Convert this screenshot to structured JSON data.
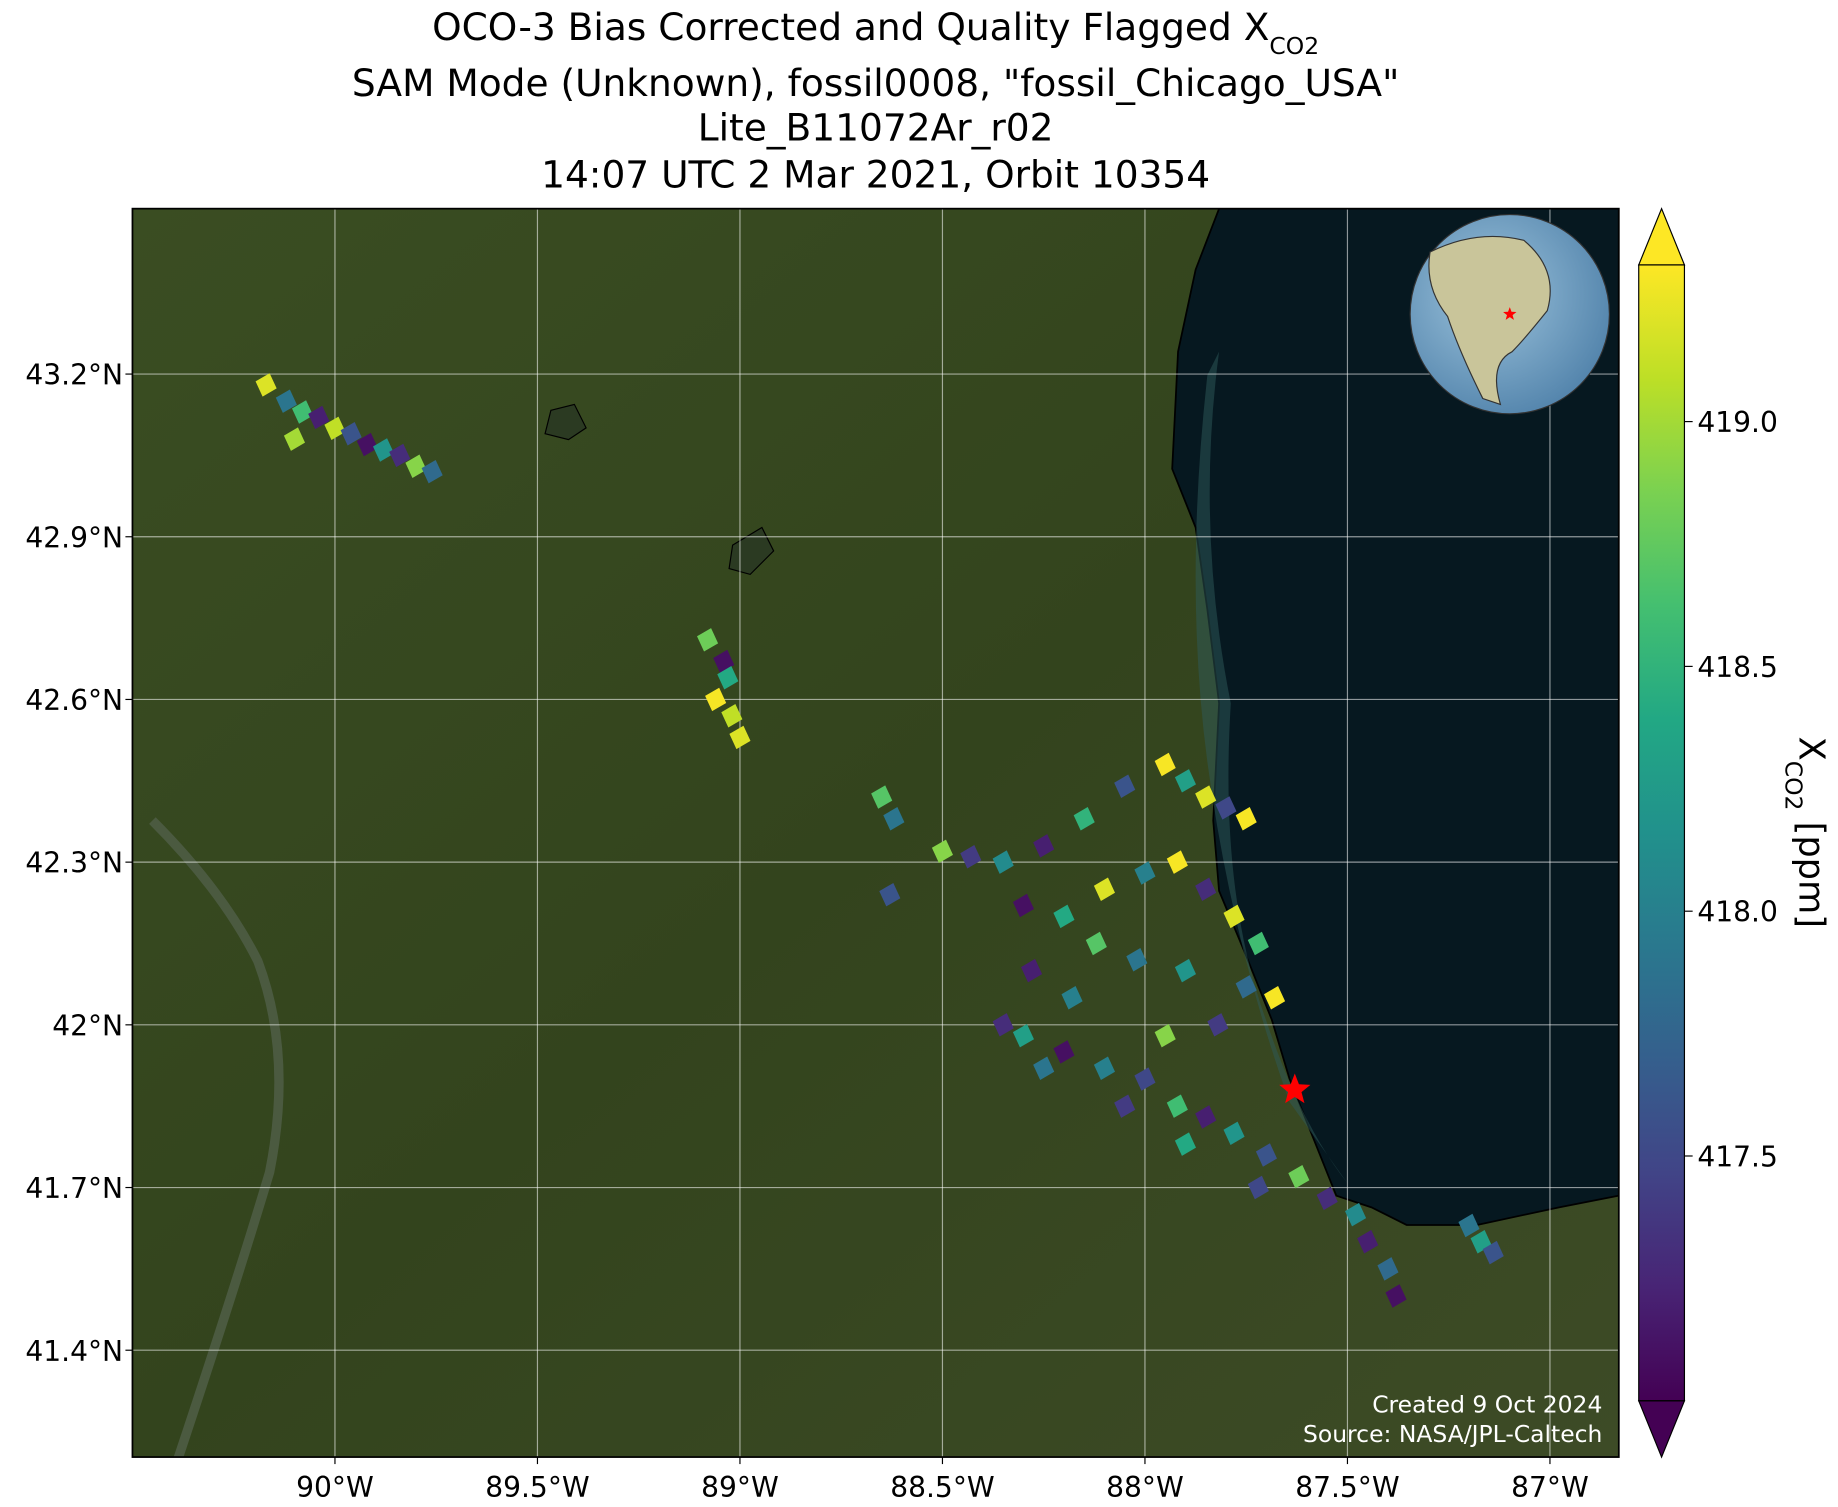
{
  "chart_data": {
    "type": "map",
    "title_line1": "OCO-3 Bias Corrected and Quality Flagged X",
    "title_line1_sub": "CO2",
    "title_line2": "SAM Mode (Unknown), fossil0008, \"fossil_Chicago_USA\"",
    "title_line3": "Lite_B11072Ar_r02",
    "title_line4": "14:07 UTC 2 Mar 2021, Orbit 10354",
    "xlim": [
      -90.5,
      -86.83
    ],
    "ylim": [
      41.203,
      43.505
    ],
    "xticks": [
      {
        "value": -90,
        "label": "90°W"
      },
      {
        "value": -89.5,
        "label": "89.5°W"
      },
      {
        "value": -89,
        "label": "89°W"
      },
      {
        "value": -88.5,
        "label": "88.5°W"
      },
      {
        "value": -88,
        "label": "88°W"
      },
      {
        "value": -87.5,
        "label": "87.5°W"
      },
      {
        "value": -87,
        "label": "87°W"
      }
    ],
    "yticks": [
      {
        "value": 41.4,
        "label": "41.4°N"
      },
      {
        "value": 41.7,
        "label": "41.7°N"
      },
      {
        "value": 42,
        "label": "42°N"
      },
      {
        "value": 42.3,
        "label": "42.3°N"
      },
      {
        "value": 42.6,
        "label": "42.6°N"
      },
      {
        "value": 42.9,
        "label": "42.9°N"
      },
      {
        "value": 43.2,
        "label": "43.2°N"
      }
    ],
    "grid": true,
    "colorbar": {
      "clim": [
        417.0,
        419.32
      ],
      "colormap": "viridis",
      "ticks": [
        417.5,
        {
          "value": 418,
          "label": "418.0"
        },
        418.5,
        {
          "value": 419,
          "label": "419.0"
        }
      ],
      "label": "X",
      "label_sub": "CO2",
      "label_unit": "[ppm]"
    },
    "site": {
      "lon": -87.63,
      "lat": 41.88,
      "color": "#ff0000"
    },
    "soundings": {
      "lon": [
        -90.17,
        -90.12,
        -90.08,
        -90.04,
        -90.0,
        -89.96,
        -89.92,
        -89.88,
        -89.84,
        -89.8,
        -89.76,
        -90.1,
        -89.08,
        -89.04,
        -89.06,
        -89.02,
        -89.0,
        -89.03,
        -88.65,
        -88.62,
        -88.63,
        -88.5,
        -88.43,
        -88.35,
        -88.25,
        -88.15,
        -88.05,
        -87.95,
        -87.9,
        -87.85,
        -87.8,
        -87.75,
        -88.1,
        -88.0,
        -87.92,
        -87.85,
        -87.78,
        -87.72,
        -87.68,
        -87.75,
        -88.2,
        -88.3,
        -88.12,
        -88.02,
        -87.9,
        -87.82,
        -87.95,
        -88.28,
        -88.18,
        -88.35,
        -88.3,
        -88.2,
        -88.1,
        -88.0,
        -87.92,
        -87.85,
        -87.78,
        -87.7,
        -87.62,
        -87.55,
        -87.48,
        -87.45,
        -87.4,
        -87.38,
        -88.25,
        -88.05,
        -87.9,
        -87.72,
        -87.2,
        -87.17,
        -87.14
      ],
      "lat": [
        43.18,
        43.15,
        43.13,
        43.12,
        43.1,
        43.09,
        43.07,
        43.06,
        43.05,
        43.03,
        43.02,
        43.08,
        42.71,
        42.67,
        42.6,
        42.57,
        42.53,
        42.64,
        42.42,
        42.38,
        42.24,
        42.32,
        42.31,
        42.3,
        42.33,
        42.38,
        42.44,
        42.48,
        42.45,
        42.42,
        42.4,
        42.38,
        42.25,
        42.28,
        42.3,
        42.25,
        42.2,
        42.15,
        42.05,
        42.07,
        42.2,
        42.22,
        42.15,
        42.12,
        42.1,
        42.0,
        41.98,
        42.1,
        42.05,
        42.0,
        41.98,
        41.95,
        41.92,
        41.9,
        41.85,
        41.83,
        41.8,
        41.76,
        41.72,
        41.68,
        41.65,
        41.6,
        41.55,
        41.5,
        41.92,
        41.85,
        41.78,
        41.7,
        41.63,
        41.6,
        41.58
      ],
      "xco2": [
        419.2,
        417.9,
        418.6,
        417.2,
        419.1,
        417.6,
        417.1,
        418.2,
        417.3,
        418.9,
        417.8,
        419.0,
        418.8,
        417.1,
        419.3,
        419.1,
        419.2,
        418.4,
        418.7,
        417.9,
        417.6,
        418.9,
        417.4,
        418.1,
        417.2,
        418.5,
        417.6,
        419.3,
        418.3,
        419.2,
        417.5,
        419.3,
        419.2,
        418.0,
        419.3,
        417.3,
        419.2,
        418.6,
        419.3,
        417.8,
        418.4,
        417.1,
        418.7,
        417.9,
        418.2,
        417.4,
        418.9,
        417.2,
        418.0,
        417.3,
        418.3,
        417.1,
        418.0,
        417.5,
        418.6,
        417.2,
        418.2,
        417.6,
        418.8,
        417.3,
        418.1,
        417.2,
        417.8,
        417.1,
        417.9,
        417.4,
        418.4,
        417.5,
        417.9,
        418.3,
        417.6
      ]
    },
    "credit_line1": "Created 9 Oct 2024",
    "credit_line2": "Source: NASA/JPL-Caltech"
  }
}
